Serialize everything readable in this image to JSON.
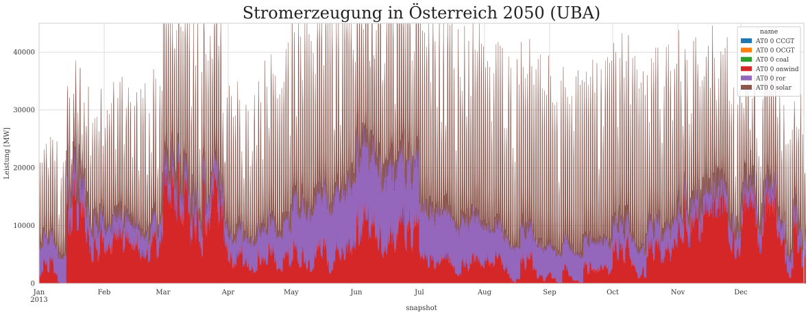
{
  "chart_data": {
    "type": "area",
    "stacked": true,
    "title": "Stromerzeugung in Österreich 2050 (UBA)",
    "xlabel": "snapshot",
    "ylabel": "Leistung [MW]",
    "ylim": [
      0,
      45000
    ],
    "yticks": [
      0,
      10000,
      20000,
      30000,
      40000
    ],
    "x_range": [
      "2013-01-01",
      "2013-12-31"
    ],
    "xticks": [
      {
        "date": "2013-01-01",
        "label": "Jan",
        "sublabel": "2013"
      },
      {
        "date": "2013-02-01",
        "label": "Feb"
      },
      {
        "date": "2013-03-01",
        "label": "Mar"
      },
      {
        "date": "2013-04-01",
        "label": "Apr"
      },
      {
        "date": "2013-05-01",
        "label": "May"
      },
      {
        "date": "2013-06-01",
        "label": "Jun"
      },
      {
        "date": "2013-07-01",
        "label": "Jul"
      },
      {
        "date": "2013-08-01",
        "label": "Aug"
      },
      {
        "date": "2013-09-01",
        "label": "Sep"
      },
      {
        "date": "2013-10-01",
        "label": "Oct"
      },
      {
        "date": "2013-11-01",
        "label": "Nov"
      },
      {
        "date": "2013-12-01",
        "label": "Dec"
      }
    ],
    "grid": true,
    "legend": {
      "title": "name",
      "placement": "top-right"
    },
    "series": [
      {
        "name": "AT0 0 CCGT",
        "color": "#1f77b4",
        "typical_mw": 0
      },
      {
        "name": "AT0 0 OCGT",
        "color": "#ff7f0e",
        "typical_mw": 0
      },
      {
        "name": "AT0 0 coal",
        "color": "#2ca02c",
        "typical_mw": 0
      },
      {
        "name": "AT0 0 onwind",
        "color": "#d62728",
        "monthly_peak_mw": [
          17000,
          9000,
          19000,
          6000,
          7000,
          12000,
          5000,
          5000,
          3500,
          7500,
          14000,
          15000
        ]
      },
      {
        "name": "AT0 0 ror",
        "color": "#9467bd",
        "monthly_base_mw": [
          5000,
          3500,
          3500,
          4000,
          9000,
          14000,
          9000,
          6000,
          5000,
          4500,
          3500,
          3000
        ]
      },
      {
        "name": "AT0 0 solar",
        "color": "#8c564b",
        "monthly_peak_total_mw": [
          20000,
          27000,
          38000,
          31000,
          41000,
          43000,
          41500,
          40000,
          37000,
          40500,
          32000,
          26500
        ]
      }
    ]
  }
}
